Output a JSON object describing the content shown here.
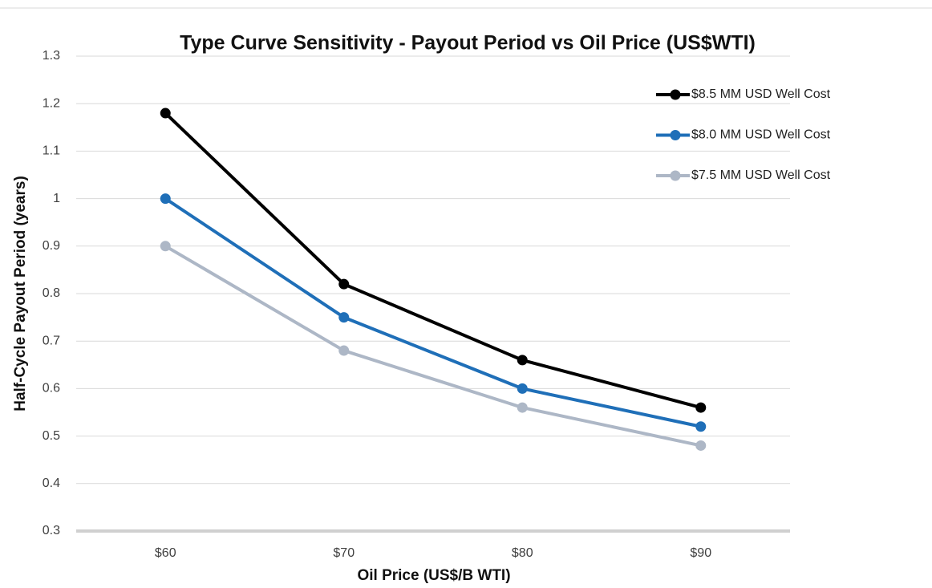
{
  "chart_data": {
    "type": "line",
    "title": "Type Curve Sensitivity - Payout Period vs Oil Price (US$WTI)",
    "x_label": "Oil Price (US$/B WTI)",
    "y_label": "Half-Cycle Payout Period (years)",
    "categories": [
      "$60",
      "$70",
      "$80",
      "$90"
    ],
    "series": [
      {
        "name": "$8.5 MM USD Well Cost",
        "color": "#000000",
        "values": [
          1.18,
          0.82,
          0.66,
          0.56
        ]
      },
      {
        "name": "$8.0 MM USD Well Cost",
        "color": "#1f6fb8",
        "values": [
          1.0,
          0.75,
          0.6,
          0.52
        ]
      },
      {
        "name": "$7.5 MM USD Well Cost",
        "color": "#adb7c6",
        "values": [
          0.9,
          0.68,
          0.56,
          0.48
        ]
      }
    ],
    "ylim": [
      0.3,
      1.3
    ],
    "yticks": [
      0.3,
      0.4,
      0.5,
      0.6,
      0.7,
      0.8,
      0.9,
      1,
      1.1,
      1.2,
      1.3
    ],
    "grid": true,
    "legend": "top-right"
  }
}
